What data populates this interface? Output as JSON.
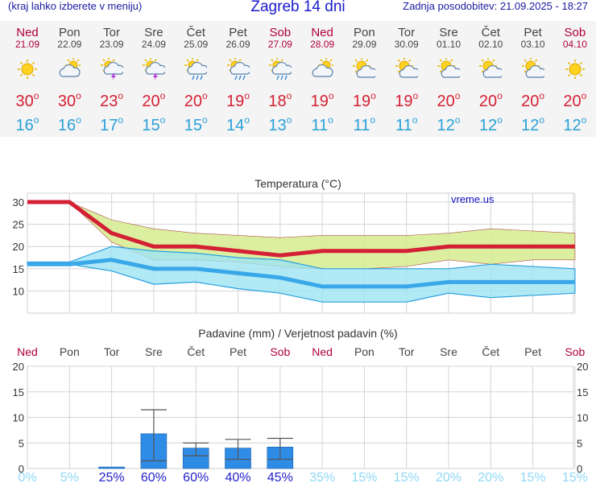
{
  "header": {
    "hint": "(kraj lahko izberete v meniju)",
    "city_title": "Zagreb 14 dni",
    "updated": "Zadnja posodobitev: 21.09.2025 - 18:27"
  },
  "forecast_days": [
    {
      "name": "Ned",
      "date": "21.09",
      "weekend": true,
      "icon": "sun-icon",
      "max": "30",
      "min": "16"
    },
    {
      "name": "Pon",
      "date": "22.09",
      "weekend": false,
      "icon": "cloud-icon",
      "max": "30",
      "min": "16"
    },
    {
      "name": "Tor",
      "date": "23.09",
      "weekend": false,
      "icon": "sun-cloud-lightning-icon",
      "max": "23",
      "min": "17"
    },
    {
      "name": "Sre",
      "date": "24.09",
      "weekend": false,
      "icon": "sun-cloud-lightning-icon",
      "max": "20",
      "min": "15"
    },
    {
      "name": "Čet",
      "date": "25.09",
      "weekend": false,
      "icon": "sun-cloud-rain-icon",
      "max": "20",
      "min": "15"
    },
    {
      "name": "Pet",
      "date": "26.09",
      "weekend": false,
      "icon": "sun-cloud-rain-icon",
      "max": "19",
      "min": "14"
    },
    {
      "name": "Sob",
      "date": "27.09",
      "weekend": true,
      "icon": "sun-cloud-rain-icon",
      "max": "18",
      "min": "13"
    },
    {
      "name": "Ned",
      "date": "28.09",
      "weekend": true,
      "icon": "cloud-icon",
      "max": "19",
      "min": "11"
    },
    {
      "name": "Pon",
      "date": "29.09",
      "weekend": false,
      "icon": "sun-cloud-icon",
      "max": "19",
      "min": "11"
    },
    {
      "name": "Tor",
      "date": "30.09",
      "weekend": false,
      "icon": "sun-cloud-icon",
      "max": "19",
      "min": "11"
    },
    {
      "name": "Sre",
      "date": "01.10",
      "weekend": false,
      "icon": "sun-cloud-icon",
      "max": "20",
      "min": "12"
    },
    {
      "name": "Čet",
      "date": "02.10",
      "weekend": false,
      "icon": "sun-cloud-icon",
      "max": "20",
      "min": "12"
    },
    {
      "name": "Pet",
      "date": "03.10",
      "weekend": false,
      "icon": "sun-cloud-icon",
      "max": "20",
      "min": "12"
    },
    {
      "name": "Sob",
      "date": "04.10",
      "weekend": true,
      "icon": "sun-icon",
      "max": "20",
      "min": "12"
    }
  ],
  "degree_symbol": "o",
  "colors": {
    "weekend": "#b0003c",
    "weekday": "#444444",
    "max_temp": "#d42035",
    "min_temp": "#2aa0d8",
    "max_band": "#d6ec8f",
    "min_band": "#9ee4f2",
    "precip_bar": "#2e8be6",
    "probability": "#8fd8f5",
    "probability_highlight": "#2222cc",
    "watermark": "#1010c0"
  },
  "chart_data": [
    {
      "type": "line",
      "title": "Temperatura (°C)",
      "watermark": "vreme.us",
      "x": [
        "21.09",
        "22.09",
        "23.09",
        "24.09",
        "25.09",
        "26.09",
        "27.09",
        "28.09",
        "29.09",
        "30.09",
        "01.10",
        "02.10",
        "03.10",
        "04.10"
      ],
      "ylim": [
        5,
        32
      ],
      "yticks": [
        10,
        15,
        20,
        25,
        30
      ],
      "grid": true,
      "series": [
        {
          "role": "max",
          "values": [
            30,
            30,
            23,
            20,
            20,
            19,
            18,
            19,
            19,
            19,
            20,
            20,
            20,
            20
          ]
        },
        {
          "role": "min",
          "values": [
            16,
            16,
            17,
            15,
            15,
            14,
            13,
            11,
            11,
            11,
            12,
            12,
            12,
            12
          ]
        }
      ],
      "max_range": {
        "upper": [
          30,
          30,
          26,
          24,
          23,
          22.5,
          22,
          22.5,
          22.5,
          22.5,
          23,
          24,
          23.5,
          23
        ],
        "lower": [
          30,
          30,
          21,
          17,
          17,
          16.5,
          15.5,
          15,
          15,
          15.5,
          17,
          16,
          17,
          17
        ]
      },
      "min_range": {
        "upper": [
          16.5,
          16.5,
          20,
          19,
          18.5,
          17.5,
          17,
          15,
          15,
          15,
          15,
          16,
          15.5,
          15
        ],
        "lower": [
          16,
          16,
          14.5,
          11.5,
          12,
          10.5,
          9.5,
          7.5,
          7.5,
          7.5,
          9.5,
          8.5,
          9,
          9.5
        ]
      }
    },
    {
      "type": "bar",
      "title": "Padavine (mm) / Verjetnost padavin (%)",
      "categories": [
        "Ned",
        "Pon",
        "Tor",
        "Sre",
        "Čet",
        "Pet",
        "Sob",
        "Ned",
        "Pon",
        "Tor",
        "Sre",
        "Čet",
        "Pet",
        "Sob"
      ],
      "weekend": [
        true,
        false,
        false,
        false,
        false,
        false,
        true,
        true,
        false,
        false,
        false,
        false,
        false,
        true
      ],
      "ylim": [
        0,
        20
      ],
      "yticks": [
        0,
        5,
        10,
        15,
        20
      ],
      "grid": true,
      "values": [
        0,
        0,
        0.3,
        6.8,
        4,
        4,
        4.2,
        0,
        0,
        0,
        0,
        0,
        0,
        0
      ],
      "error_low": [
        null,
        null,
        null,
        1.5,
        2.5,
        1.8,
        1.8,
        null,
        null,
        null,
        null,
        null,
        null,
        null
      ],
      "error_high": [
        null,
        null,
        null,
        11.5,
        5,
        5.7,
        5.9,
        null,
        null,
        null,
        null,
        null,
        null,
        null
      ],
      "probability": [
        "0%",
        "5%",
        "25%",
        "60%",
        "60%",
        "40%",
        "45%",
        "35%",
        "15%",
        "15%",
        "20%",
        "20%",
        "15%",
        "15%"
      ],
      "probability_highlight": [
        false,
        false,
        true,
        true,
        true,
        true,
        true,
        false,
        false,
        false,
        false,
        false,
        false,
        false
      ]
    }
  ]
}
